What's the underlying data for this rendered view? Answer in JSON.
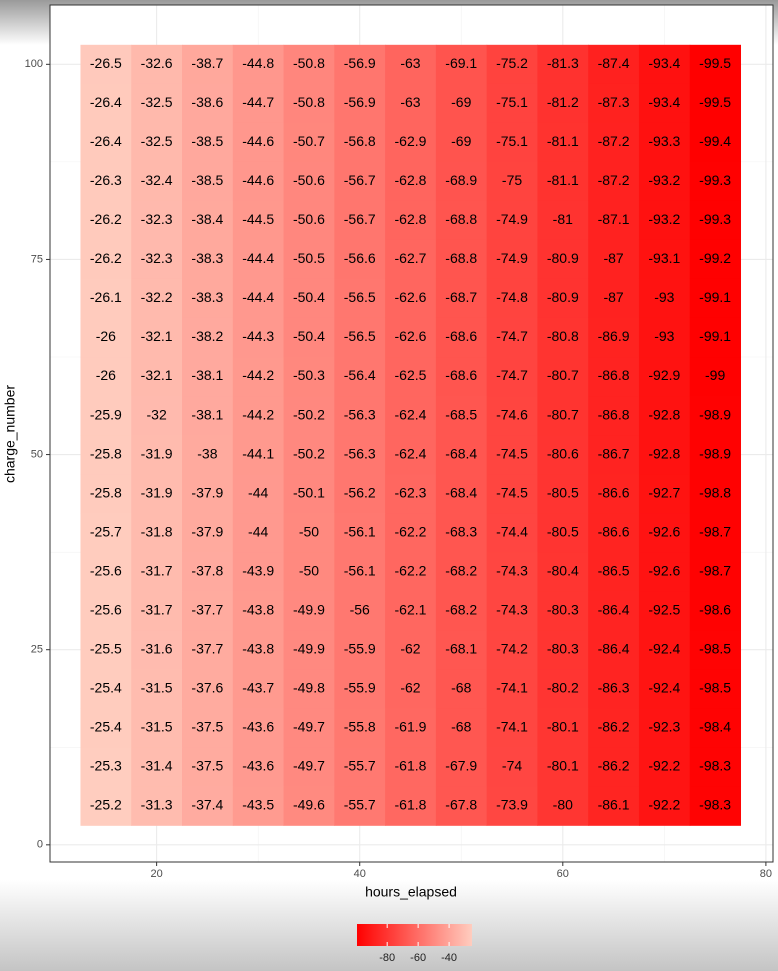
{
  "chart_data": {
    "type": "heatmap",
    "xlabel": "hours_elapsed",
    "ylabel": "charge_number",
    "x": [
      15,
      20,
      25,
      30,
      35,
      40,
      45,
      50,
      55,
      60,
      65,
      70,
      75
    ],
    "y": [
      100,
      95,
      90,
      85,
      80,
      75,
      70,
      65,
      60,
      55,
      50,
      45,
      40,
      35,
      30,
      25,
      20,
      15,
      10,
      5
    ],
    "z": [
      [
        -26.5,
        -32.6,
        -38.7,
        -44.8,
        -50.8,
        -56.9,
        -63,
        -69.1,
        -75.2,
        -81.3,
        -87.4,
        -93.4,
        -99.5
      ],
      [
        -26.4,
        -32.5,
        -38.6,
        -44.7,
        -50.8,
        -56.9,
        -63,
        -69,
        -75.1,
        -81.2,
        -87.3,
        -93.4,
        -99.5
      ],
      [
        -26.4,
        -32.5,
        -38.5,
        -44.6,
        -50.7,
        -56.8,
        -62.9,
        -69,
        -75.1,
        -81.1,
        -87.2,
        -93.3,
        -99.4
      ],
      [
        -26.3,
        -32.4,
        -38.5,
        -44.6,
        -50.6,
        -56.7,
        -62.8,
        -68.9,
        -75,
        -81.1,
        -87.2,
        -93.2,
        -99.3
      ],
      [
        -26.2,
        -32.3,
        -38.4,
        -44.5,
        -50.6,
        -56.7,
        -62.8,
        -68.8,
        -74.9,
        -81,
        -87.1,
        -93.2,
        -99.3
      ],
      [
        -26.2,
        -32.3,
        -38.3,
        -44.4,
        -50.5,
        -56.6,
        -62.7,
        -68.8,
        -74.9,
        -80.9,
        -87,
        -93.1,
        -99.2
      ],
      [
        -26.1,
        -32.2,
        -38.3,
        -44.4,
        -50.4,
        -56.5,
        -62.6,
        -68.7,
        -74.8,
        -80.9,
        -87,
        -93,
        -99.1
      ],
      [
        -26,
        -32.1,
        -38.2,
        -44.3,
        -50.4,
        -56.5,
        -62.6,
        -68.6,
        -74.7,
        -80.8,
        -86.9,
        -93,
        -99.1
      ],
      [
        -26,
        -32.1,
        -38.1,
        -44.2,
        -50.3,
        -56.4,
        -62.5,
        -68.6,
        -74.7,
        -80.7,
        -86.8,
        -92.9,
        -99
      ],
      [
        -25.9,
        -32,
        -38.1,
        -44.2,
        -50.2,
        -56.3,
        -62.4,
        -68.5,
        -74.6,
        -80.7,
        -86.8,
        -92.8,
        -98.9
      ],
      [
        -25.8,
        -31.9,
        -38,
        -44.1,
        -50.2,
        -56.3,
        -62.4,
        -68.4,
        -74.5,
        -80.6,
        -86.7,
        -92.8,
        -98.9
      ],
      [
        -25.8,
        -31.9,
        -37.9,
        -44,
        -50.1,
        -56.2,
        -62.3,
        -68.4,
        -74.5,
        -80.5,
        -86.6,
        -92.7,
        -98.8
      ],
      [
        -25.7,
        -31.8,
        -37.9,
        -44,
        -50,
        -56.1,
        -62.2,
        -68.3,
        -74.4,
        -80.5,
        -86.6,
        -92.6,
        -98.7
      ],
      [
        -25.6,
        -31.7,
        -37.8,
        -43.9,
        -50,
        -56.1,
        -62.2,
        -68.2,
        -74.3,
        -80.4,
        -86.5,
        -92.6,
        -98.7
      ],
      [
        -25.6,
        -31.7,
        -37.7,
        -43.8,
        -49.9,
        -56,
        -62.1,
        -68.2,
        -74.3,
        -80.3,
        -86.4,
        -92.5,
        -98.6
      ],
      [
        -25.5,
        -31.6,
        -37.7,
        -43.8,
        -49.9,
        -55.9,
        -62,
        -68.1,
        -74.2,
        -80.3,
        -86.4,
        -92.4,
        -98.5
      ],
      [
        -25.4,
        -31.5,
        -37.6,
        -43.7,
        -49.8,
        -55.9,
        -62,
        -68,
        -74.1,
        -80.2,
        -86.3,
        -92.4,
        -98.5
      ],
      [
        -25.4,
        -31.5,
        -37.5,
        -43.6,
        -49.7,
        -55.8,
        -61.9,
        -68,
        -74.1,
        -80.1,
        -86.2,
        -92.3,
        -98.4
      ],
      [
        -25.3,
        -31.4,
        -37.5,
        -43.6,
        -49.7,
        -55.7,
        -61.8,
        -67.9,
        -74,
        -80.1,
        -86.2,
        -92.2,
        -98.3
      ],
      [
        -25.2,
        -31.3,
        -37.4,
        -43.5,
        -49.6,
        -55.7,
        -61.8,
        -67.8,
        -73.9,
        -80,
        -86.1,
        -92.2,
        -98.3
      ]
    ],
    "xlim": [
      9.5,
      80.7
    ],
    "ylim": [
      -2.2,
      107.6
    ],
    "xticks": [
      20,
      40,
      60,
      80
    ],
    "yticks": [
      0,
      25,
      50,
      75,
      100
    ],
    "grid": true,
    "color_low": "#ff0000",
    "color_high": "#ffcdbf",
    "colorbar_ticks": [
      -80,
      -60,
      -40
    ]
  }
}
